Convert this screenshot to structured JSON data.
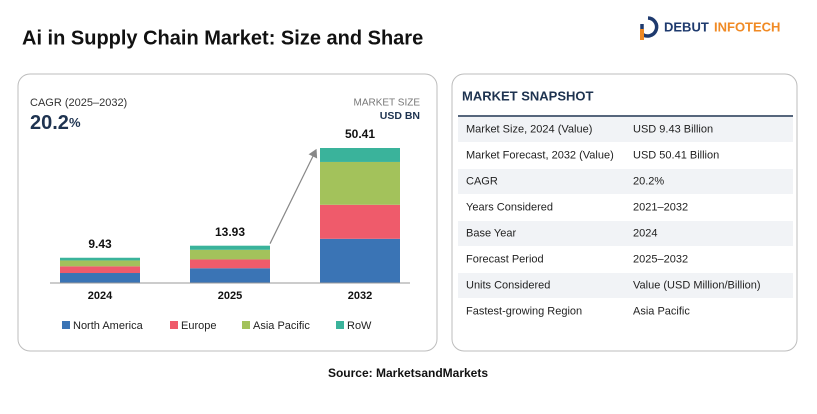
{
  "title": "Ai in Supply Chain Market: Size and Share",
  "brand": {
    "first": "DEBUT",
    "second": "INFOTECH"
  },
  "chart_data": {
    "type": "stacked-bar",
    "cagr_label": "CAGR (2025–2032)",
    "cagr": {
      "value": 20.2,
      "unit": "%"
    },
    "unit_title": "MARKET SIZE",
    "unit": "USD BN",
    "categories": [
      "2024",
      "2025",
      "2032"
    ],
    "totals": [
      9.43,
      13.93,
      50.41
    ],
    "series": [
      {
        "name": "North America",
        "color": "#3a74b5",
        "values": [
          3.73,
          5.5,
          16.5
        ]
      },
      {
        "name": "Europe",
        "color": "#ef5b6b",
        "values": [
          2.5,
          3.3,
          12.7
        ]
      },
      {
        "name": "Asia Pacific",
        "color": "#a3c25b",
        "values": [
          2.2,
          3.6,
          16.0
        ]
      },
      {
        "name": "RoW",
        "color": "#3ab39b",
        "values": [
          1.0,
          1.53,
          5.21
        ]
      }
    ]
  },
  "snapshot": {
    "title": "MARKET SNAPSHOT",
    "rows": [
      [
        "Market Size, 2024 (Value)",
        "USD 9.43 Billion"
      ],
      [
        "Market Forecast, 2032 (Value)",
        "USD 50.41 Billion"
      ],
      [
        "CAGR",
        "20.2%"
      ],
      [
        "Years Considered",
        "2021–2032"
      ],
      [
        "Base Year",
        "2024"
      ],
      [
        "Forecast Period",
        "2025–2032"
      ],
      [
        "Units Considered",
        "Value (USD Million/Billion)"
      ],
      [
        "Fastest-growing Region",
        "Asia Pacific"
      ]
    ]
  },
  "source": "Source: MarketsandMarkets"
}
